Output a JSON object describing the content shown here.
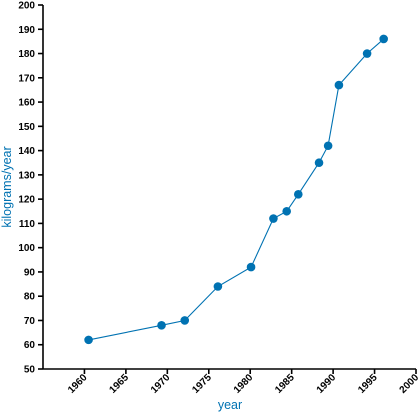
{
  "chart_data": {
    "type": "line",
    "xlabel": "year",
    "ylabel": "kilograms/year",
    "xlim": [
      1955,
      2000
    ],
    "ylim": [
      50,
      200
    ],
    "x_ticks": [
      "1960",
      "1965",
      "1970",
      "1975",
      "1980",
      "1985",
      "1990",
      "1995",
      "2000"
    ],
    "y_ticks": [
      "50",
      "60",
      "70",
      "80",
      "90",
      "100",
      "110",
      "120",
      "130",
      "140",
      "150",
      "160",
      "170",
      "180",
      "190",
      "200"
    ],
    "grid": false,
    "markers": true,
    "colors": {
      "series": "#0072b2",
      "axis_title": "#0072b2",
      "axis": "#000000"
    },
    "series": [
      {
        "x": [
          1960.5,
          1969.3,
          1972.1,
          1976.1,
          1980.1,
          1982.8,
          1984.4,
          1985.8,
          1988.3,
          1989.4,
          1990.7,
          1994.1,
          1996.1
        ],
        "y": [
          62,
          68,
          70,
          84,
          92,
          112,
          115,
          122,
          135,
          142,
          167,
          180,
          186
        ]
      }
    ]
  }
}
